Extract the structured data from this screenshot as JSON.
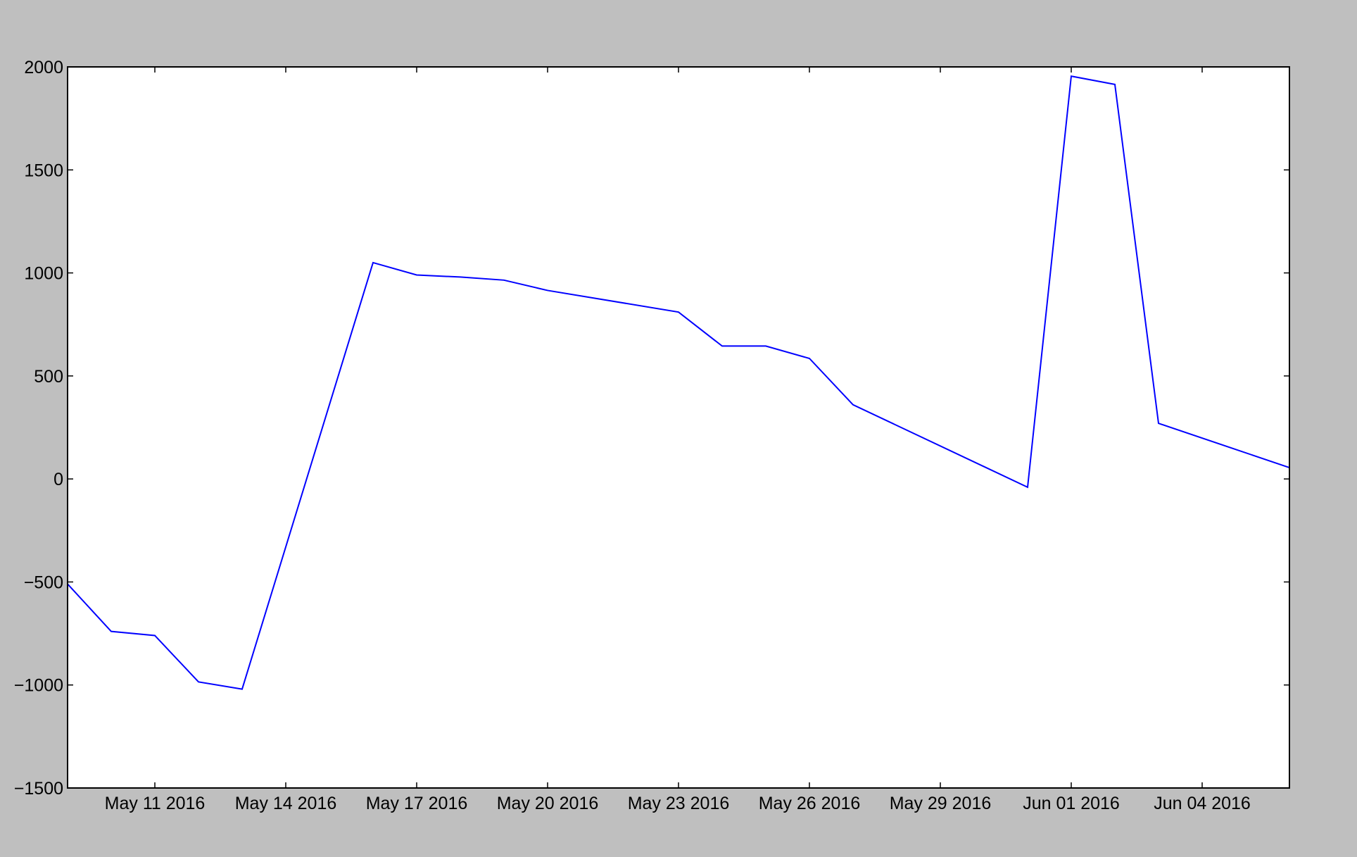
{
  "chart_data": {
    "type": "line",
    "title": "",
    "xlabel": "",
    "ylabel": "",
    "x_tick_labels": [
      "May 11 2016",
      "May 14 2016",
      "May 17 2016",
      "May 20 2016",
      "May 23 2016",
      "May 26 2016",
      "May 29 2016",
      "Jun 01 2016",
      "Jun 04 2016"
    ],
    "x_tick_dates": [
      "2016-05-11",
      "2016-05-14",
      "2016-05-17",
      "2016-05-20",
      "2016-05-23",
      "2016-05-26",
      "2016-05-29",
      "2016-06-01",
      "2016-06-04"
    ],
    "y_tick_labels": [
      "2000",
      "1500",
      "1000",
      "500",
      "0",
      "−500",
      "−1000",
      "−1500"
    ],
    "y_tick_values": [
      2000,
      1500,
      1000,
      500,
      0,
      -500,
      -1000,
      -1500
    ],
    "xlim": [
      "2016-05-09",
      "2016-06-06"
    ],
    "ylim": [
      -1500,
      2000
    ],
    "grid": false,
    "legend": "none",
    "series": [
      {
        "color": "#0000ff",
        "points": [
          {
            "x": "2016-05-09",
            "y": -510
          },
          {
            "x": "2016-05-10",
            "y": -740
          },
          {
            "x": "2016-05-11",
            "y": -760
          },
          {
            "x": "2016-05-12",
            "y": -985
          },
          {
            "x": "2016-05-13",
            "y": -1020
          },
          {
            "x": "2016-05-16",
            "y": 1050
          },
          {
            "x": "2016-05-17",
            "y": 990
          },
          {
            "x": "2016-05-18",
            "y": 980
          },
          {
            "x": "2016-05-19",
            "y": 965
          },
          {
            "x": "2016-05-20",
            "y": 915
          },
          {
            "x": "2016-05-23",
            "y": 810
          },
          {
            "x": "2016-05-24",
            "y": 645
          },
          {
            "x": "2016-05-25",
            "y": 645
          },
          {
            "x": "2016-05-26",
            "y": 585
          },
          {
            "x": "2016-05-27",
            "y": 360
          },
          {
            "x": "2016-05-31",
            "y": -40
          },
          {
            "x": "2016-06-01",
            "y": 1955
          },
          {
            "x": "2016-06-02",
            "y": 1915
          },
          {
            "x": "2016-06-03",
            "y": 270
          },
          {
            "x": "2016-06-06",
            "y": 55
          }
        ]
      }
    ]
  }
}
